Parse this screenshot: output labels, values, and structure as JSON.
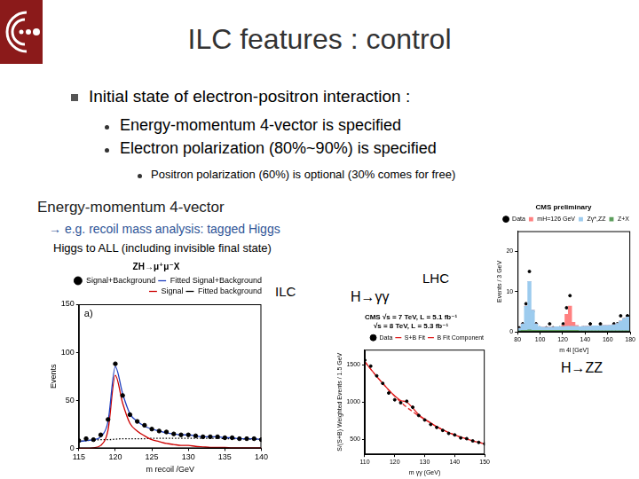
{
  "slide": {
    "title": "ILC features : control",
    "bullets": [
      {
        "text": "Initial state of electron-positron interaction :",
        "items": [
          {
            "text": "Energy-momentum 4-vector is specified"
          },
          {
            "text": "Electron polarization (80%~90%) is specified",
            "items": [
              {
                "text": "Positron polarization (60%) is optional (30% comes for free)"
              }
            ]
          }
        ]
      }
    ],
    "section": {
      "heading": "Energy-momentum 4-vector",
      "example": "→ e.g. recoil mass analysis: tagged Higgs",
      "note": "Higgs to ALL (including invisible final state)"
    },
    "labels": {
      "ilc": "ILC",
      "lhc": "LHC",
      "hgg": "H→γγ",
      "hzz": "H→ZZ"
    }
  },
  "chart_data": [
    {
      "type": "line",
      "title": "ZH→μ⁺μ⁻X",
      "annotations": [
        "a)"
      ],
      "x_label": "m recoil /GeV",
      "y_label": "Events",
      "x": [
        115,
        116,
        117,
        118,
        119,
        120,
        121,
        122,
        123,
        124,
        125,
        126,
        127,
        128,
        129,
        130,
        131,
        132,
        133,
        134,
        135,
        136,
        137,
        138,
        139,
        140
      ],
      "series": [
        {
          "name": "Signal+Background",
          "type": "scatter",
          "marker": "circle",
          "color": "#000000",
          "values": [
            8,
            10,
            9,
            14,
            30,
            88,
            55,
            35,
            28,
            24,
            20,
            18,
            17,
            15,
            14,
            14,
            13,
            12,
            12,
            12,
            11,
            11,
            10,
            10,
            10,
            9
          ]
        },
        {
          "name": "Fitted Signal+Background",
          "type": "line",
          "line_style": "solid",
          "color": "#1f3fbf",
          "values": [
            7,
            8,
            9,
            12,
            28,
            85,
            57,
            36,
            28,
            23,
            20,
            18,
            16,
            15,
            14,
            14,
            13,
            12,
            12,
            12,
            11,
            11,
            10,
            10,
            10,
            9
          ]
        },
        {
          "name": "Signal",
          "type": "line",
          "line_style": "solid",
          "color": "#cc0000",
          "values": [
            0,
            0,
            0.5,
            3,
            19,
            76,
            47,
            26,
            18,
            13,
            9,
            7,
            5,
            4,
            3,
            3,
            2,
            1.5,
            1,
            1,
            1,
            0.5,
            0.5,
            0.5,
            0.5,
            0.5
          ]
        },
        {
          "name": "Fitted background",
          "type": "line",
          "line_style": "dotted",
          "color": "#000000",
          "values": [
            7,
            8,
            8.5,
            9,
            9,
            9.5,
            10,
            10,
            10,
            10,
            10.5,
            10.5,
            10.5,
            10.5,
            10.5,
            10.5,
            10.5,
            10.5,
            10.5,
            10.5,
            10,
            10,
            10,
            9.5,
            9.5,
            9
          ]
        }
      ],
      "xlim": [
        115,
        140
      ],
      "xticks": [
        115,
        120,
        125,
        130,
        135,
        140
      ],
      "ylim": [
        0,
        150
      ],
      "yticks": [
        0,
        50,
        100,
        150
      ],
      "legend": "upper right"
    },
    {
      "type": "line",
      "title": [
        "CMS √s = 7 TeV, L = 5.1 fb⁻¹",
        "√s = 8 TeV, L = 5.3 fb⁻¹"
      ],
      "x_label": "m γγ (GeV)",
      "y_label": "S/(S+B) Weighted Events / 1.5 GeV",
      "x": [
        110,
        112,
        114,
        116,
        118,
        120,
        122,
        124,
        126,
        128,
        130,
        132,
        134,
        136,
        138,
        140,
        142,
        144,
        146,
        148,
        150
      ],
      "series": [
        {
          "name": "Data",
          "type": "scatter",
          "marker": "circle",
          "color": "#000000",
          "values": [
            1560,
            1480,
            1350,
            1250,
            1120,
            1030,
            990,
            1010,
            930,
            820,
            760,
            700,
            660,
            620,
            580,
            560,
            520,
            510,
            480,
            460,
            440
          ]
        },
        {
          "name": "S+B Fit",
          "type": "line",
          "line_style": "solid",
          "color": "#e02020",
          "values": [
            1540,
            1440,
            1340,
            1250,
            1160,
            1080,
            1020,
            1000,
            920,
            830,
            770,
            720,
            670,
            630,
            590,
            560,
            530,
            505,
            480,
            460,
            440
          ]
        },
        {
          "name": "B Fit Component",
          "type": "line",
          "line_style": "dashed",
          "color": "#e02020",
          "values": [
            1540,
            1440,
            1340,
            1250,
            1160,
            1080,
            1000,
            930,
            870,
            815,
            765,
            720,
            670,
            630,
            590,
            560,
            530,
            505,
            480,
            460,
            440
          ]
        }
      ],
      "xlim": [
        110,
        150
      ],
      "xticks": [
        110,
        120,
        130,
        140,
        150
      ],
      "ylim": [
        300,
        1700
      ],
      "yticks": [
        500,
        1000,
        1500
      ],
      "legend": "upper right"
    },
    {
      "type": "histogram",
      "title": "CMS preliminary",
      "x_label": "m 4l [GeV]",
      "y_label": "Events / 3 GeV",
      "bins": [
        80,
        83,
        86,
        89,
        92,
        95,
        98,
        101,
        104,
        107,
        110,
        113,
        116,
        119,
        122,
        125,
        128,
        131,
        134,
        137,
        140,
        143,
        146,
        149,
        152,
        155,
        158,
        161,
        164,
        167,
        170,
        173,
        176,
        179
      ],
      "series": [
        {
          "name": "Z+X",
          "type": "bar",
          "color": "#5c9e5c",
          "values": [
            0.3,
            0.4,
            0.4,
            0.5,
            0.4,
            0.4,
            0.4,
            0.4,
            0.4,
            0.4,
            0.4,
            0.4,
            0.4,
            0.4,
            0.4,
            0.4,
            0.4,
            0.4,
            0.3,
            0.3,
            0.3,
            0.3,
            0.3,
            0.3,
            0.3,
            0.3,
            0.3,
            0.3,
            0.3,
            0.3,
            0.3,
            0.3,
            0.3
          ]
        },
        {
          "name": "Zγ*,ZZ",
          "type": "bar",
          "color": "#9ccbee",
          "values": [
            0.6,
            1.6,
            6,
            12,
            5,
            1.6,
            0.9,
            0.8,
            0.8,
            0.8,
            0.8,
            0.9,
            0.9,
            0.9,
            1,
            1,
            1,
            1,
            1,
            1.1,
            1.1,
            1.1,
            1.2,
            1.2,
            1.2,
            1.3,
            1.3,
            1.4,
            1.5,
            1.8,
            2.4,
            3,
            3.4
          ]
        },
        {
          "name": "mH=126 GeV",
          "type": "bar",
          "color": "#ff8080",
          "values": [
            0,
            0,
            0,
            0,
            0,
            0,
            0,
            0,
            0,
            0,
            0,
            0,
            0,
            0.3,
            3,
            5,
            1,
            0.2,
            0,
            0,
            0,
            0,
            0,
            0,
            0,
            0,
            0,
            0,
            0,
            0,
            0,
            0,
            0
          ]
        },
        {
          "name": "Data",
          "type": "scatter",
          "marker": "circle",
          "color": "#000000",
          "values": [
            1,
            2,
            7,
            15,
            5,
            2,
            1,
            0,
            1,
            2,
            1,
            0,
            1,
            2,
            6,
            9,
            2,
            1,
            0,
            1,
            1,
            2,
            1,
            0,
            2,
            1,
            1,
            1,
            2,
            2,
            4,
            3,
            4
          ]
        }
      ],
      "stacked": true,
      "xlim": [
        80,
        180
      ],
      "xticks": [
        80,
        100,
        120,
        140,
        160,
        180
      ],
      "ylim": [
        0,
        25
      ],
      "yticks": [
        0,
        10,
        20
      ],
      "legend": "upper right"
    }
  ]
}
